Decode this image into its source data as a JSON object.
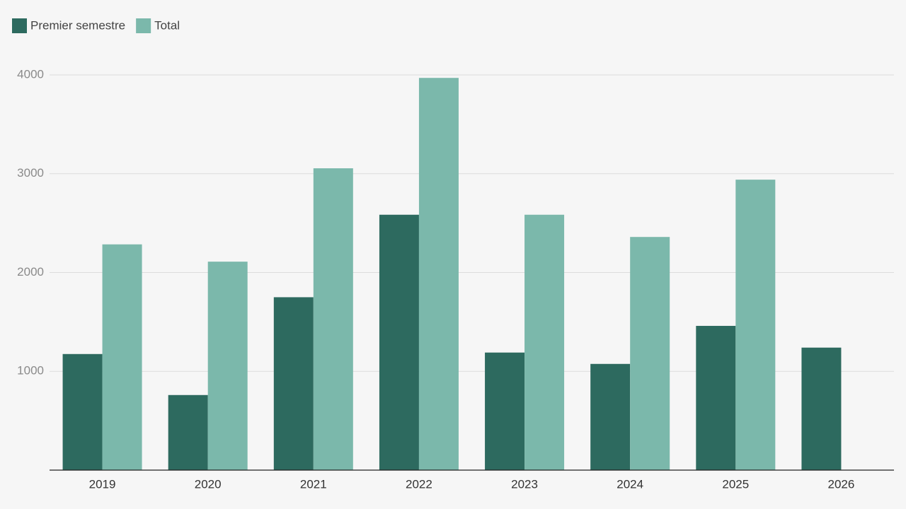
{
  "chart_data": {
    "type": "bar",
    "categories": [
      "2019",
      "2020",
      "2021",
      "2022",
      "2023",
      "2024",
      "2025",
      "2026"
    ],
    "series": [
      {
        "name": "Premier semestre",
        "color": "#2d6a5f",
        "values": [
          1175,
          760,
          1750,
          2585,
          1190,
          1075,
          1460,
          1240
        ]
      },
      {
        "name": "Total",
        "color": "#7bb8ab",
        "values": [
          2285,
          2110,
          3055,
          3970,
          2585,
          2360,
          2940,
          null
        ]
      }
    ],
    "ylim": [
      0,
      4000
    ],
    "yticks": [
      1000,
      2000,
      3000,
      4000
    ],
    "grid": true,
    "legend": "top-left"
  }
}
